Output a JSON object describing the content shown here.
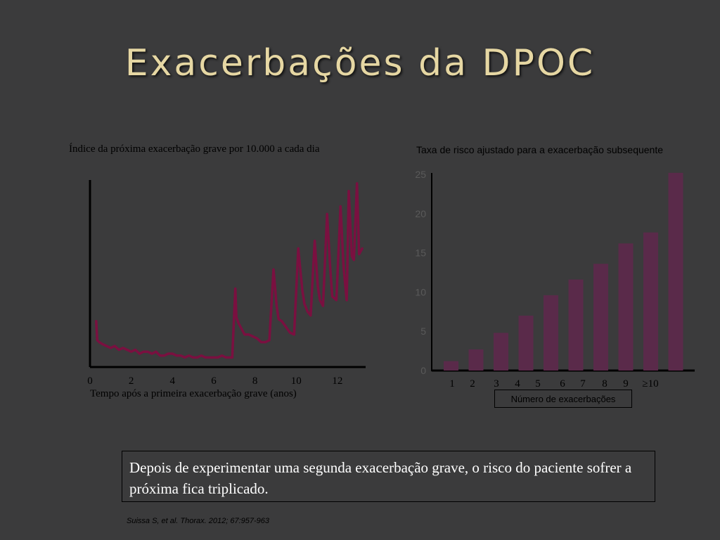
{
  "slide": {
    "title": "Exacerbações da DPOC",
    "note": "Depois de experimentar uma segunda exacerbação  grave, o risco do paciente sofrer a próxima fica  triplicado.",
    "citation": "Suissa S, et al. Thorax. 2012; 67:957-963"
  },
  "chart_data": [
    {
      "type": "line",
      "title": "Índice da próxima exacerbação grave por 10.000 a cada dia",
      "xlabel": "Tempo após a primeira exacerbação grave (anos)",
      "ylabel": "",
      "x_ticks": [
        "0",
        "2",
        "4",
        "6",
        "8",
        "10",
        "12"
      ],
      "xlim": [
        0,
        13.3
      ],
      "ylim": [
        0,
        100
      ],
      "color": "#7a1040",
      "series": [
        {
          "x": [
            0.3,
            0.35,
            0.45,
            0.6,
            0.8,
            1.0,
            1.2,
            1.4,
            1.6,
            1.8,
            2.0,
            2.2,
            2.4,
            2.6,
            2.8,
            3.0,
            3.2,
            3.4,
            3.6,
            3.8,
            4.0,
            4.2,
            4.4,
            4.6,
            4.8,
            5.0,
            5.2,
            5.4,
            5.6,
            5.8,
            6.0,
            6.2,
            6.4,
            6.6,
            6.8,
            6.9,
            7.05,
            7.1,
            7.2,
            7.35,
            7.5,
            7.7,
            7.9,
            8.1,
            8.3,
            8.5,
            8.7,
            8.9,
            9.05,
            9.15,
            9.3,
            9.5,
            9.7,
            9.9,
            10.1,
            10.3,
            10.4,
            10.55,
            10.7,
            10.9,
            11.05,
            11.15,
            11.3,
            11.5,
            11.65,
            11.75,
            11.95,
            12.15,
            12.3,
            12.45,
            12.55,
            12.7,
            12.8,
            12.95,
            13.05,
            13.2
          ],
          "y": [
            24,
            14,
            13,
            12,
            11,
            10,
            11,
            9,
            10,
            9,
            8,
            9,
            7,
            8,
            8,
            7,
            8,
            6,
            6,
            7,
            7,
            6,
            6,
            5,
            6,
            5,
            5,
            6,
            5,
            5,
            5,
            5,
            6,
            5,
            5,
            5,
            41,
            26,
            23,
            20,
            17,
            17,
            16,
            15,
            13,
            13,
            14,
            51,
            32,
            25,
            24,
            21,
            18,
            17,
            62,
            40,
            33,
            29,
            27,
            66,
            42,
            35,
            32,
            80,
            52,
            37,
            35,
            84,
            52,
            35,
            92,
            58,
            56,
            96,
            59,
            62
          ]
        }
      ]
    },
    {
      "type": "bar",
      "title": "Taxa de risco ajustado para a exacerbação subsequente",
      "xlabel": "Número de exacerbações",
      "ylabel": "",
      "categories": [
        "1",
        "2",
        "3",
        "4",
        "5",
        "6",
        "7",
        "8",
        "9",
        "≥10"
      ],
      "values": [
        1.2,
        2.7,
        4.8,
        7.0,
        9.6,
        11.6,
        13.6,
        16.2,
        17.6,
        25.2
      ],
      "y_ticks": [
        "0",
        "5",
        "10",
        "15",
        "20",
        "25"
      ],
      "ylim": [
        0,
        25
      ],
      "color": "#5a2a4a"
    }
  ]
}
